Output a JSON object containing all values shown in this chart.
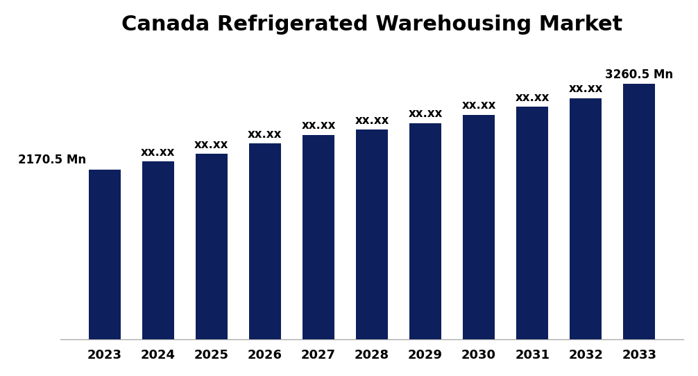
{
  "title": "Canada Refrigerated Warehousing Market",
  "title_fontsize": 22,
  "title_fontweight": "bold",
  "categories": [
    "2023",
    "2024",
    "2025",
    "2026",
    "2027",
    "2028",
    "2029",
    "2030",
    "2031",
    "2032",
    "2033"
  ],
  "values": [
    2170.5,
    2270,
    2370,
    2500,
    2610,
    2680,
    2760,
    2870,
    2970,
    3080,
    3260.5
  ],
  "bar_color": "#0d1f5c",
  "labels": [
    "2170.5 Mn",
    "xx.xx",
    "xx.xx",
    "xx.xx",
    "xx.xx",
    "xx.xx",
    "xx.xx",
    "xx.xx",
    "xx.xx",
    "xx.xx",
    "3260.5 Mn"
  ],
  "label_fontsize": 12,
  "label_fontweight": "bold",
  "xtick_fontsize": 13,
  "background_color": "#ffffff",
  "ylim_min": 0,
  "ylim_max": 3700,
  "bar_width": 0.6
}
